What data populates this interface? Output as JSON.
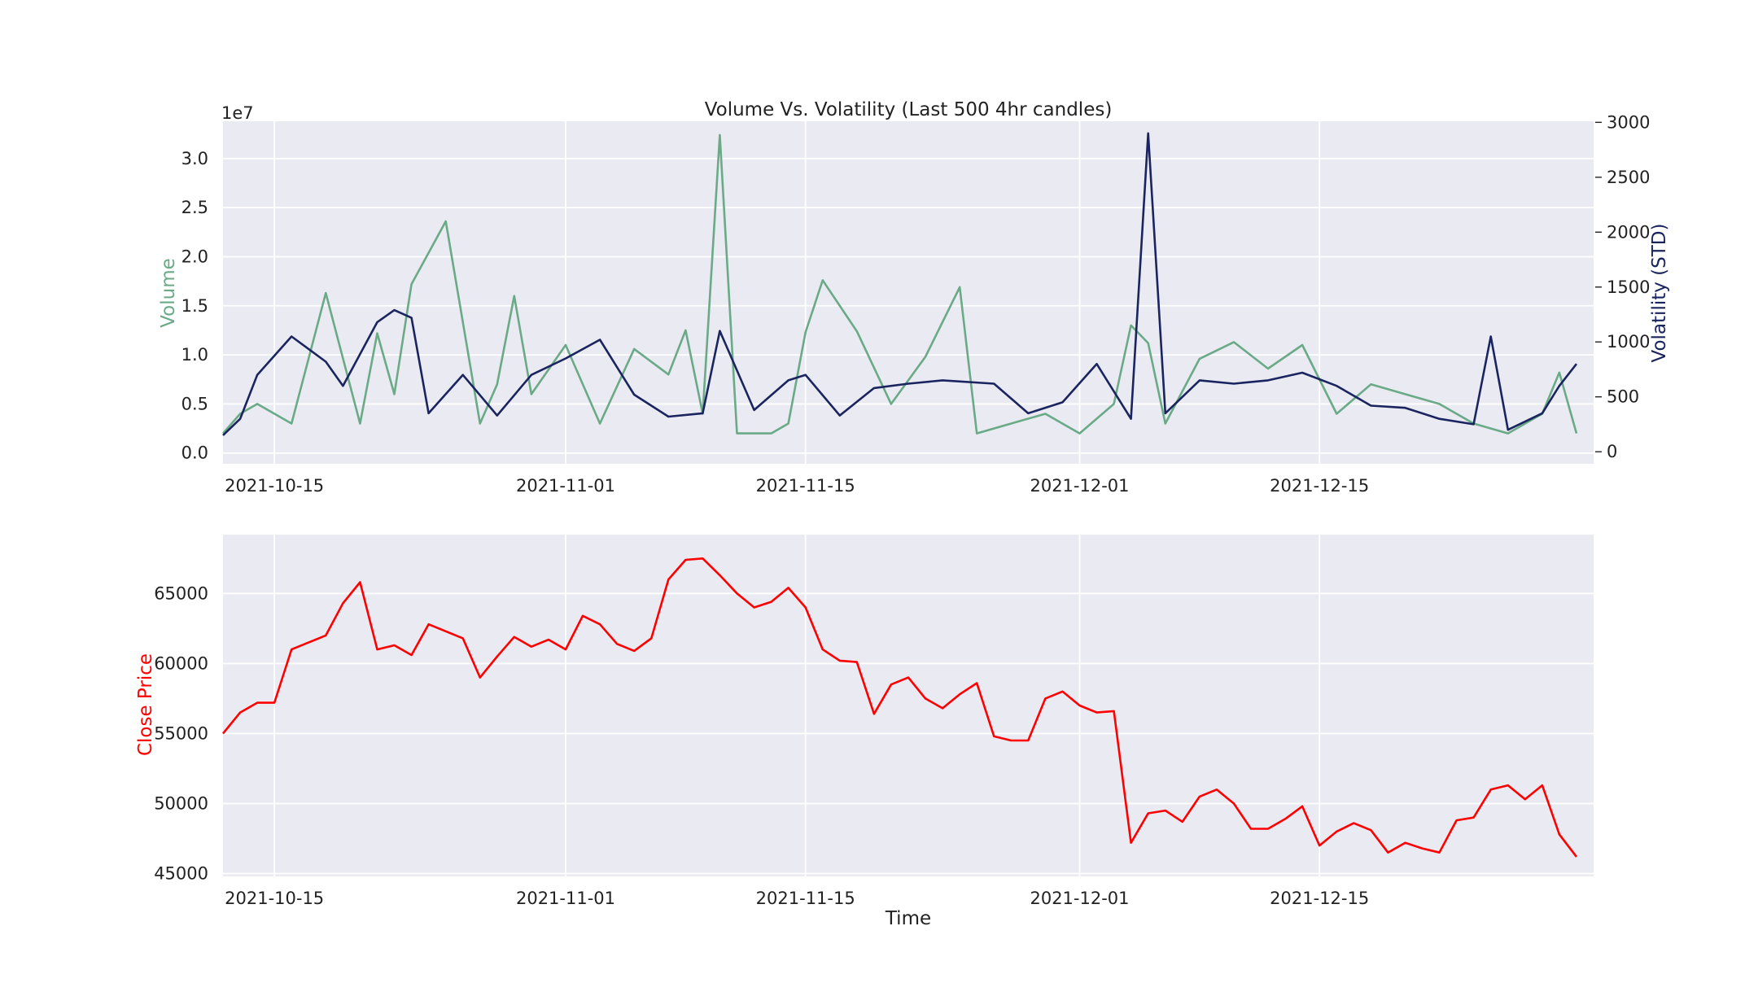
{
  "chart_data": [
    {
      "type": "line",
      "title": "Volume Vs. Volatility (Last 500 4hr candles)",
      "xlabel": "",
      "ylabel": "Volume",
      "y2label": "Volatility (STD)",
      "offset_text": "1e7",
      "grid": true,
      "x_dates": [
        "2021-10-12",
        "2021-12-30"
      ],
      "x_ticks": [
        "2021-10-15",
        "2021-11-01",
        "2021-11-15",
        "2021-12-01",
        "2021-12-15"
      ],
      "y_ticks": [
        "0.0",
        "0.5",
        "1.0",
        "1.5",
        "2.0",
        "2.5",
        "3.0"
      ],
      "ylim": [
        -1.1,
        33.8
      ],
      "y2_ticks": [
        "0",
        "500",
        "1000",
        "1500",
        "2000",
        "2500",
        "3000"
      ],
      "y2lim": [
        -110,
        3010
      ],
      "series": [
        {
          "name": "Volume",
          "axis": "left",
          "units": "1e6",
          "color": "#6aaa86",
          "x": [
            "2021-10-12",
            "2021-10-13",
            "2021-10-14",
            "2021-10-16",
            "2021-10-18",
            "2021-10-20",
            "2021-10-21",
            "2021-10-22",
            "2021-10-23",
            "2021-10-25",
            "2021-10-27",
            "2021-10-28",
            "2021-10-29",
            "2021-10-30",
            "2021-11-01",
            "2021-11-03",
            "2021-11-05",
            "2021-11-07",
            "2021-11-08",
            "2021-11-09",
            "2021-11-10",
            "2021-11-11",
            "2021-11-13",
            "2021-11-14",
            "2021-11-15",
            "2021-11-16",
            "2021-11-18",
            "2021-11-20",
            "2021-11-22",
            "2021-11-24",
            "2021-11-25",
            "2021-11-27",
            "2021-11-29",
            "2021-12-01",
            "2021-12-03",
            "2021-12-04",
            "2021-12-05",
            "2021-12-06",
            "2021-12-08",
            "2021-12-10",
            "2021-12-12",
            "2021-12-14",
            "2021-12-16",
            "2021-12-18",
            "2021-12-20",
            "2021-12-22",
            "2021-12-24",
            "2021-12-26",
            "2021-12-28",
            "2021-12-29",
            "2021-12-30"
          ],
          "values": [
            2,
            4,
            5,
            3,
            16.3,
            3,
            12.2,
            6,
            17.2,
            23.6,
            3,
            7,
            16,
            6,
            11,
            3,
            10.6,
            8,
            12.5,
            4,
            32.4,
            2,
            2,
            3,
            12.3,
            17.6,
            12.4,
            5,
            9.8,
            16.9,
            2,
            3,
            4,
            2,
            5,
            13,
            11.2,
            3,
            9.6,
            11.3,
            8.6,
            11,
            4,
            7,
            6,
            5,
            3,
            2,
            4,
            8.2,
            2
          ]
        },
        {
          "name": "Volatility (STD)",
          "axis": "right",
          "color": "#1a2560",
          "x": [
            "2021-10-12",
            "2021-10-13",
            "2021-10-14",
            "2021-10-16",
            "2021-10-18",
            "2021-10-19",
            "2021-10-21",
            "2021-10-22",
            "2021-10-23",
            "2021-10-24",
            "2021-10-26",
            "2021-10-28",
            "2021-10-30",
            "2021-11-01",
            "2021-11-03",
            "2021-11-05",
            "2021-11-07",
            "2021-11-09",
            "2021-11-10",
            "2021-11-12",
            "2021-11-14",
            "2021-11-15",
            "2021-11-17",
            "2021-11-19",
            "2021-11-21",
            "2021-11-23",
            "2021-11-26",
            "2021-11-28",
            "2021-11-30",
            "2021-12-02",
            "2021-12-04",
            "2021-12-05",
            "2021-12-06",
            "2021-12-08",
            "2021-12-10",
            "2021-12-12",
            "2021-12-14",
            "2021-12-16",
            "2021-12-18",
            "2021-12-20",
            "2021-12-22",
            "2021-12-24",
            "2021-12-25",
            "2021-12-26",
            "2021-12-28",
            "2021-12-29",
            "2021-12-30"
          ],
          "values": [
            150,
            300,
            700,
            1050,
            820,
            600,
            1180,
            1290,
            1220,
            350,
            700,
            330,
            700,
            850,
            1020,
            520,
            320,
            350,
            1100,
            380,
            650,
            700,
            330,
            580,
            620,
            650,
            620,
            350,
            450,
            800,
            300,
            2900,
            350,
            650,
            620,
            650,
            720,
            600,
            420,
            400,
            300,
            250,
            1050,
            200,
            350,
            600,
            800
          ]
        }
      ]
    },
    {
      "type": "line",
      "title": "",
      "xlabel": "Time",
      "ylabel": "Close Price",
      "grid": true,
      "x_dates": [
        "2021-10-12",
        "2021-12-30"
      ],
      "x_ticks": [
        "2021-10-15",
        "2021-11-01",
        "2021-11-15",
        "2021-12-01",
        "2021-12-15"
      ],
      "y_ticks": [
        "45000",
        "50000",
        "55000",
        "60000",
        "65000"
      ],
      "ylim": [
        44800,
        69200
      ],
      "series": [
        {
          "name": "Close Price",
          "color": "#ff0000",
          "x": [
            "2021-10-12",
            "2021-10-13",
            "2021-10-14",
            "2021-10-15",
            "2021-10-16",
            "2021-10-18",
            "2021-10-19",
            "2021-10-20",
            "2021-10-21",
            "2021-10-22",
            "2021-10-23",
            "2021-10-24",
            "2021-10-26",
            "2021-10-27",
            "2021-10-28",
            "2021-10-29",
            "2021-10-30",
            "2021-10-31",
            "2021-11-01",
            "2021-11-02",
            "2021-11-03",
            "2021-11-04",
            "2021-11-05",
            "2021-11-06",
            "2021-11-07",
            "2021-11-08",
            "2021-11-09",
            "2021-11-10",
            "2021-11-11",
            "2021-11-12",
            "2021-11-13",
            "2021-11-14",
            "2021-11-15",
            "2021-11-16",
            "2021-11-17",
            "2021-11-18",
            "2021-11-19",
            "2021-11-20",
            "2021-11-21",
            "2021-11-22",
            "2021-11-23",
            "2021-11-24",
            "2021-11-25",
            "2021-11-26",
            "2021-11-27",
            "2021-11-28",
            "2021-11-29",
            "2021-11-30",
            "2021-12-01",
            "2021-12-02",
            "2021-12-03",
            "2021-12-04",
            "2021-12-05",
            "2021-12-06",
            "2021-12-07",
            "2021-12-08",
            "2021-12-09",
            "2021-12-10",
            "2021-12-11",
            "2021-12-12",
            "2021-12-13",
            "2021-12-14",
            "2021-12-15",
            "2021-12-16",
            "2021-12-17",
            "2021-12-18",
            "2021-12-19",
            "2021-12-20",
            "2021-12-21",
            "2021-12-22",
            "2021-12-23",
            "2021-12-24",
            "2021-12-25",
            "2021-12-26",
            "2021-12-27",
            "2021-12-28",
            "2021-12-29",
            "2021-12-30"
          ],
          "values": [
            55000,
            56500,
            57200,
            57200,
            61000,
            62000,
            64300,
            65800,
            61000,
            61300,
            60600,
            62800,
            61800,
            59000,
            60500,
            61900,
            61200,
            61700,
            61000,
            63400,
            62800,
            61400,
            60900,
            61800,
            66000,
            67400,
            67500,
            66300,
            65000,
            64000,
            64400,
            65400,
            64000,
            61000,
            60200,
            60100,
            56400,
            58500,
            59000,
            57500,
            56800,
            57800,
            58600,
            54800,
            54500,
            54500,
            57500,
            58000,
            57000,
            56500,
            56600,
            47200,
            49300,
            49500,
            48700,
            50500,
            51000,
            50000,
            48200,
            48200,
            48900,
            49800,
            47000,
            48000,
            48600,
            48100,
            46500,
            47200,
            46800,
            46500,
            48800,
            49000,
            51000,
            51300,
            50300,
            51300,
            47800,
            46200
          ]
        }
      ]
    }
  ]
}
